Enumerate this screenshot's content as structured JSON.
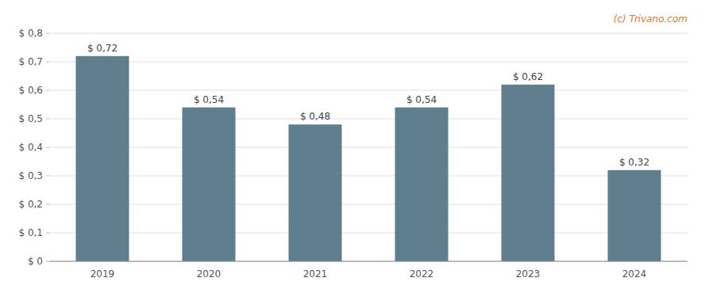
{
  "chart_data": {
    "type": "bar",
    "categories": [
      "2019",
      "2020",
      "2021",
      "2022",
      "2023",
      "2024"
    ],
    "values": [
      0.72,
      0.54,
      0.48,
      0.54,
      0.62,
      0.32
    ],
    "value_labels": [
      "$ 0,72",
      "$ 0,54",
      "$ 0,48",
      "$ 0,54",
      "$ 0,62",
      "$ 0,32"
    ],
    "data_labels": true,
    "color": "#5f7f8f",
    "ylim": [
      0,
      0.8
    ],
    "yticks": [
      {
        "value": 0,
        "label": "$ 0"
      },
      {
        "value": 0.1,
        "label": "$ 0,1"
      },
      {
        "value": 0.2,
        "label": "$ 0,2"
      },
      {
        "value": 0.3,
        "label": "$ 0,3"
      },
      {
        "value": 0.4,
        "label": "$ 0,4"
      },
      {
        "value": 0.5,
        "label": "$ 0,5"
      },
      {
        "value": 0.6,
        "label": "$ 0,6"
      },
      {
        "value": 0.7,
        "label": "$ 0,7"
      },
      {
        "value": 0.8,
        "label": "$ 0,8"
      }
    ],
    "grid": true,
    "annotations": [
      "(c) Trivano.com"
    ]
  }
}
